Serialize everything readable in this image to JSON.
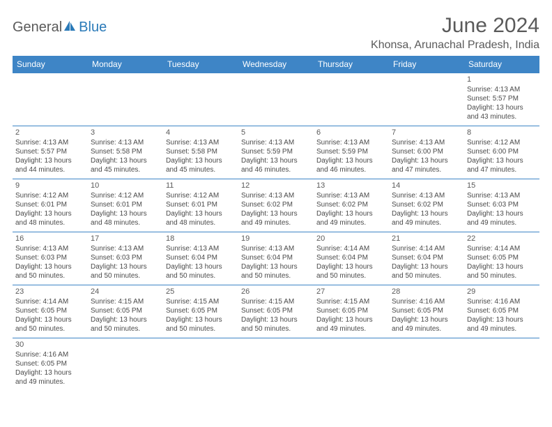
{
  "logo": {
    "part1": "General",
    "part2": "Blue"
  },
  "title": "June 2024",
  "location": "Khonsa, Arunachal Pradesh, India",
  "colors": {
    "header_bg": "#3e85c6",
    "header_text": "#ffffff",
    "body_text": "#4a4a4a",
    "title_text": "#5a5a5a",
    "logo_blue": "#2a7ab8",
    "border": "#3e85c6",
    "background": "#ffffff"
  },
  "typography": {
    "title_fontsize": 30,
    "location_fontsize": 16,
    "dayheader_fontsize": 12,
    "cell_fontsize": 10,
    "logo_fontsize": 20
  },
  "day_headers": [
    "Sunday",
    "Monday",
    "Tuesday",
    "Wednesday",
    "Thursday",
    "Friday",
    "Saturday"
  ],
  "weeks": [
    [
      null,
      null,
      null,
      null,
      null,
      null,
      {
        "n": "1",
        "sr": "Sunrise: 4:13 AM",
        "ss": "Sunset: 5:57 PM",
        "d1": "Daylight: 13 hours",
        "d2": "and 43 minutes."
      }
    ],
    [
      {
        "n": "2",
        "sr": "Sunrise: 4:13 AM",
        "ss": "Sunset: 5:57 PM",
        "d1": "Daylight: 13 hours",
        "d2": "and 44 minutes."
      },
      {
        "n": "3",
        "sr": "Sunrise: 4:13 AM",
        "ss": "Sunset: 5:58 PM",
        "d1": "Daylight: 13 hours",
        "d2": "and 45 minutes."
      },
      {
        "n": "4",
        "sr": "Sunrise: 4:13 AM",
        "ss": "Sunset: 5:58 PM",
        "d1": "Daylight: 13 hours",
        "d2": "and 45 minutes."
      },
      {
        "n": "5",
        "sr": "Sunrise: 4:13 AM",
        "ss": "Sunset: 5:59 PM",
        "d1": "Daylight: 13 hours",
        "d2": "and 46 minutes."
      },
      {
        "n": "6",
        "sr": "Sunrise: 4:13 AM",
        "ss": "Sunset: 5:59 PM",
        "d1": "Daylight: 13 hours",
        "d2": "and 46 minutes."
      },
      {
        "n": "7",
        "sr": "Sunrise: 4:13 AM",
        "ss": "Sunset: 6:00 PM",
        "d1": "Daylight: 13 hours",
        "d2": "and 47 minutes."
      },
      {
        "n": "8",
        "sr": "Sunrise: 4:12 AM",
        "ss": "Sunset: 6:00 PM",
        "d1": "Daylight: 13 hours",
        "d2": "and 47 minutes."
      }
    ],
    [
      {
        "n": "9",
        "sr": "Sunrise: 4:12 AM",
        "ss": "Sunset: 6:01 PM",
        "d1": "Daylight: 13 hours",
        "d2": "and 48 minutes."
      },
      {
        "n": "10",
        "sr": "Sunrise: 4:12 AM",
        "ss": "Sunset: 6:01 PM",
        "d1": "Daylight: 13 hours",
        "d2": "and 48 minutes."
      },
      {
        "n": "11",
        "sr": "Sunrise: 4:12 AM",
        "ss": "Sunset: 6:01 PM",
        "d1": "Daylight: 13 hours",
        "d2": "and 48 minutes."
      },
      {
        "n": "12",
        "sr": "Sunrise: 4:13 AM",
        "ss": "Sunset: 6:02 PM",
        "d1": "Daylight: 13 hours",
        "d2": "and 49 minutes."
      },
      {
        "n": "13",
        "sr": "Sunrise: 4:13 AM",
        "ss": "Sunset: 6:02 PM",
        "d1": "Daylight: 13 hours",
        "d2": "and 49 minutes."
      },
      {
        "n": "14",
        "sr": "Sunrise: 4:13 AM",
        "ss": "Sunset: 6:02 PM",
        "d1": "Daylight: 13 hours",
        "d2": "and 49 minutes."
      },
      {
        "n": "15",
        "sr": "Sunrise: 4:13 AM",
        "ss": "Sunset: 6:03 PM",
        "d1": "Daylight: 13 hours",
        "d2": "and 49 minutes."
      }
    ],
    [
      {
        "n": "16",
        "sr": "Sunrise: 4:13 AM",
        "ss": "Sunset: 6:03 PM",
        "d1": "Daylight: 13 hours",
        "d2": "and 50 minutes."
      },
      {
        "n": "17",
        "sr": "Sunrise: 4:13 AM",
        "ss": "Sunset: 6:03 PM",
        "d1": "Daylight: 13 hours",
        "d2": "and 50 minutes."
      },
      {
        "n": "18",
        "sr": "Sunrise: 4:13 AM",
        "ss": "Sunset: 6:04 PM",
        "d1": "Daylight: 13 hours",
        "d2": "and 50 minutes."
      },
      {
        "n": "19",
        "sr": "Sunrise: 4:13 AM",
        "ss": "Sunset: 6:04 PM",
        "d1": "Daylight: 13 hours",
        "d2": "and 50 minutes."
      },
      {
        "n": "20",
        "sr": "Sunrise: 4:14 AM",
        "ss": "Sunset: 6:04 PM",
        "d1": "Daylight: 13 hours",
        "d2": "and 50 minutes."
      },
      {
        "n": "21",
        "sr": "Sunrise: 4:14 AM",
        "ss": "Sunset: 6:04 PM",
        "d1": "Daylight: 13 hours",
        "d2": "and 50 minutes."
      },
      {
        "n": "22",
        "sr": "Sunrise: 4:14 AM",
        "ss": "Sunset: 6:05 PM",
        "d1": "Daylight: 13 hours",
        "d2": "and 50 minutes."
      }
    ],
    [
      {
        "n": "23",
        "sr": "Sunrise: 4:14 AM",
        "ss": "Sunset: 6:05 PM",
        "d1": "Daylight: 13 hours",
        "d2": "and 50 minutes."
      },
      {
        "n": "24",
        "sr": "Sunrise: 4:15 AM",
        "ss": "Sunset: 6:05 PM",
        "d1": "Daylight: 13 hours",
        "d2": "and 50 minutes."
      },
      {
        "n": "25",
        "sr": "Sunrise: 4:15 AM",
        "ss": "Sunset: 6:05 PM",
        "d1": "Daylight: 13 hours",
        "d2": "and 50 minutes."
      },
      {
        "n": "26",
        "sr": "Sunrise: 4:15 AM",
        "ss": "Sunset: 6:05 PM",
        "d1": "Daylight: 13 hours",
        "d2": "and 50 minutes."
      },
      {
        "n": "27",
        "sr": "Sunrise: 4:15 AM",
        "ss": "Sunset: 6:05 PM",
        "d1": "Daylight: 13 hours",
        "d2": "and 49 minutes."
      },
      {
        "n": "28",
        "sr": "Sunrise: 4:16 AM",
        "ss": "Sunset: 6:05 PM",
        "d1": "Daylight: 13 hours",
        "d2": "and 49 minutes."
      },
      {
        "n": "29",
        "sr": "Sunrise: 4:16 AM",
        "ss": "Sunset: 6:05 PM",
        "d1": "Daylight: 13 hours",
        "d2": "and 49 minutes."
      }
    ],
    [
      {
        "n": "30",
        "sr": "Sunrise: 4:16 AM",
        "ss": "Sunset: 6:05 PM",
        "d1": "Daylight: 13 hours",
        "d2": "and 49 minutes."
      },
      null,
      null,
      null,
      null,
      null,
      null
    ]
  ]
}
